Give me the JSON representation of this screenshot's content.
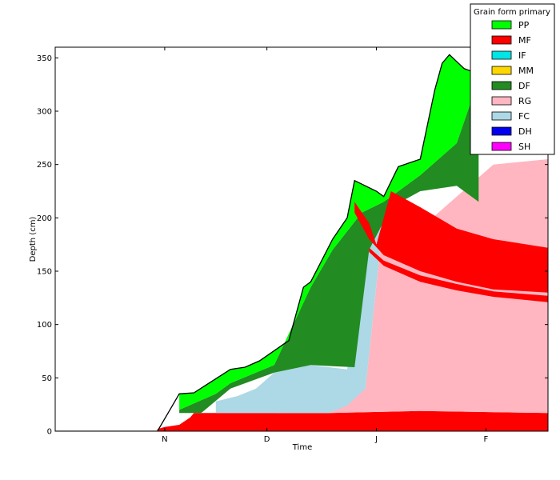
{
  "chart_data": {
    "type": "area",
    "title": "",
    "xlabel": "Time",
    "ylabel": "Depth (cm)",
    "xlim": [
      0,
      135
    ],
    "ylim": [
      0,
      360
    ],
    "x_ticks": [
      {
        "x": 30,
        "label": "N"
      },
      {
        "x": 58,
        "label": "D"
      },
      {
        "x": 88,
        "label": "J"
      },
      {
        "x": 118,
        "label": "F"
      }
    ],
    "y_ticks": [
      0,
      50,
      100,
      150,
      200,
      250,
      300,
      350
    ],
    "grid": false,
    "legend": {
      "title": "Grain form primary",
      "placement": "top-right",
      "entries": [
        {
          "name": "PP",
          "color": "#00ff00"
        },
        {
          "name": "MF",
          "color": "#ff0000"
        },
        {
          "name": "IF",
          "color": "#00e5e5"
        },
        {
          "name": "MM",
          "color": "#ffd700"
        },
        {
          "name": "DF",
          "color": "#228b22"
        },
        {
          "name": "RG",
          "color": "#ffb6c1"
        },
        {
          "name": "FC",
          "color": "#add8e6"
        },
        {
          "name": "DH",
          "color": "#0000ee"
        },
        {
          "name": "SH",
          "color": "#ff00ff"
        }
      ]
    },
    "series": [
      {
        "name": "MF",
        "color": "#ff0000",
        "lower": [
          [
            28,
            0
          ],
          [
            34,
            0
          ],
          [
            135,
            0
          ]
        ],
        "upper": [
          [
            28,
            2
          ],
          [
            30,
            4
          ],
          [
            34,
            6
          ],
          [
            37,
            13
          ],
          [
            38,
            17
          ],
          [
            60,
            17
          ],
          [
            75,
            17
          ],
          [
            100,
            19
          ],
          [
            135,
            17
          ]
        ]
      },
      {
        "name": "RG",
        "color": "#ffb6c1",
        "lower": [
          [
            60,
            17
          ],
          [
            75,
            17
          ],
          [
            100,
            19
          ],
          [
            135,
            17
          ]
        ],
        "upper": [
          [
            60,
            20
          ],
          [
            70,
            24
          ],
          [
            76,
            30
          ],
          [
            85,
            40
          ],
          [
            89,
            170
          ],
          [
            91,
            165
          ],
          [
            100,
            190
          ],
          [
            110,
            220
          ],
          [
            120,
            250
          ],
          [
            135,
            255
          ]
        ]
      },
      {
        "name": "FC",
        "color": "#add8e6",
        "lower": [
          [
            44,
            17
          ],
          [
            60,
            17
          ],
          [
            75,
            17
          ],
          [
            80,
            24
          ],
          [
            85,
            40
          ],
          [
            89,
            170
          ],
          [
            91,
            165
          ]
        ],
        "upper": [
          [
            44,
            28
          ],
          [
            50,
            33
          ],
          [
            55,
            40
          ],
          [
            60,
            55
          ],
          [
            70,
            62
          ],
          [
            80,
            58
          ],
          [
            84,
            170
          ],
          [
            88,
            200
          ],
          [
            92,
            215
          ],
          [
            100,
            200
          ]
        ]
      },
      {
        "name": "DF",
        "color": "#228b22",
        "lower": [
          [
            34,
            17
          ],
          [
            40,
            17
          ],
          [
            48,
            40
          ],
          [
            60,
            55
          ],
          [
            70,
            62
          ],
          [
            82,
            60
          ],
          [
            86,
            170
          ],
          [
            92,
            210
          ],
          [
            100,
            225
          ],
          [
            110,
            230
          ],
          [
            116,
            215
          ]
        ],
        "upper": [
          [
            34,
            20
          ],
          [
            44,
            35
          ],
          [
            48,
            45
          ],
          [
            60,
            62
          ],
          [
            70,
            135
          ],
          [
            76,
            170
          ],
          [
            84,
            205
          ],
          [
            90,
            215
          ],
          [
            100,
            240
          ],
          [
            110,
            270
          ],
          [
            116,
            330
          ],
          [
            118,
            340
          ]
        ]
      },
      {
        "name": "PP",
        "color": "#00ff00",
        "lower": [
          [
            34,
            20
          ],
          [
            44,
            35
          ],
          [
            48,
            45
          ],
          [
            60,
            62
          ],
          [
            70,
            135
          ],
          [
            76,
            170
          ],
          [
            84,
            205
          ],
          [
            90,
            215
          ],
          [
            100,
            240
          ],
          [
            110,
            270
          ],
          [
            116,
            330
          ]
        ],
        "upper": [
          [
            34,
            35
          ],
          [
            38,
            36
          ],
          [
            48,
            58
          ],
          [
            52,
            60
          ],
          [
            56,
            66
          ],
          [
            64,
            85
          ],
          [
            68,
            135
          ],
          [
            70,
            140
          ],
          [
            76,
            180
          ],
          [
            80,
            200
          ],
          [
            82,
            235
          ],
          [
            88,
            225
          ],
          [
            90,
            220
          ],
          [
            94,
            248
          ],
          [
            100,
            255
          ],
          [
            104,
            320
          ],
          [
            106,
            345
          ],
          [
            108,
            353
          ],
          [
            112,
            340
          ],
          [
            116,
            335
          ],
          [
            118,
            330
          ]
        ]
      },
      {
        "name": "MF",
        "color": "#ff0000",
        "lower": [
          [
            82,
            205
          ],
          [
            86,
            180
          ],
          [
            90,
            165
          ],
          [
            100,
            150
          ],
          [
            110,
            140
          ],
          [
            120,
            133
          ],
          [
            135,
            130
          ]
        ],
        "upper": [
          [
            82,
            215
          ],
          [
            86,
            195
          ],
          [
            88,
            175
          ],
          [
            92,
            225
          ],
          [
            100,
            210
          ],
          [
            110,
            190
          ],
          [
            120,
            180
          ],
          [
            135,
            172
          ]
        ]
      },
      {
        "name": "MF",
        "color": "#ff0000",
        "lower": [
          [
            86,
            168
          ],
          [
            90,
            155
          ],
          [
            100,
            140
          ],
          [
            110,
            132
          ],
          [
            120,
            126
          ],
          [
            135,
            121
          ]
        ],
        "upper": [
          [
            86,
            172
          ],
          [
            90,
            160
          ],
          [
            100,
            146
          ],
          [
            110,
            138
          ],
          [
            120,
            131
          ],
          [
            135,
            127
          ]
        ]
      }
    ]
  }
}
